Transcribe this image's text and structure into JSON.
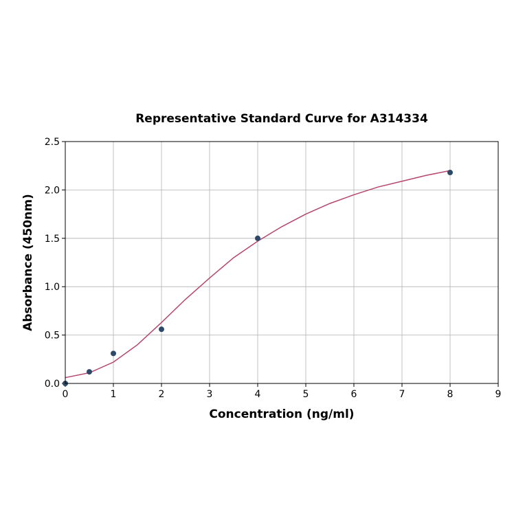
{
  "chart_data": {
    "type": "scatter",
    "title": "Representative Standard Curve for A314334",
    "xlabel": "Concentration (ng/ml)",
    "ylabel": "Absorbance (450nm)",
    "xlim": [
      0,
      9
    ],
    "ylim": [
      0,
      2.5
    ],
    "xticks": [
      0,
      1,
      2,
      3,
      4,
      5,
      6,
      7,
      8,
      9
    ],
    "yticks": [
      {
        "value": 0,
        "label": "0.0"
      },
      0.5,
      {
        "value": 1,
        "label": "1.0"
      },
      1.5,
      {
        "value": 2,
        "label": "2.0"
      },
      2.5
    ],
    "grid": true,
    "series": [
      {
        "mode": "markers",
        "color": "#2c4a68",
        "x": [
          0,
          0.5,
          1,
          2,
          4,
          8
        ],
        "values": [
          0.0,
          0.12,
          0.31,
          0.56,
          1.5,
          2.18
        ]
      },
      {
        "mode": "line",
        "color": "#b5446e",
        "x": [
          0,
          0.5,
          1,
          1.5,
          2,
          2.5,
          3,
          3.5,
          4,
          4.5,
          5,
          5.5,
          6,
          6.5,
          7,
          7.5,
          8
        ],
        "values": [
          0.06,
          0.11,
          0.22,
          0.4,
          0.63,
          0.87,
          1.09,
          1.3,
          1.47,
          1.62,
          1.75,
          1.86,
          1.95,
          2.03,
          2.09,
          2.15,
          2.2
        ]
      }
    ]
  }
}
